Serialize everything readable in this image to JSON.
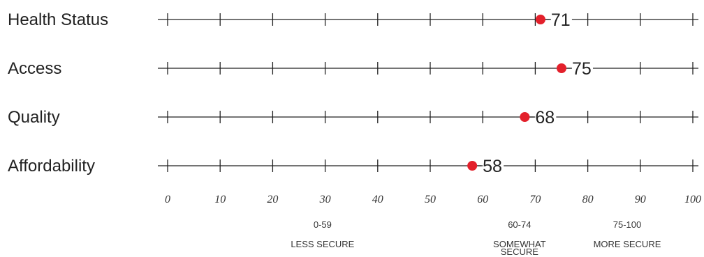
{
  "chart_data": {
    "type": "scatter",
    "title": "",
    "xlabel": "",
    "ylabel": "",
    "xlim": [
      0,
      100
    ],
    "x_ticks": [
      0,
      10,
      20,
      30,
      40,
      50,
      60,
      70,
      80,
      90,
      100
    ],
    "grid": false,
    "categories": [
      "Health Status",
      "Access",
      "Quality",
      "Affordability"
    ],
    "values": [
      71,
      75,
      68,
      58
    ],
    "value_labels": [
      "71",
      "75",
      "68",
      "58"
    ],
    "marker_color": "#e3202b",
    "line_color": "#222222",
    "bands": [
      {
        "range": "0-59",
        "label_lines": [
          "LESS SECURE"
        ]
      },
      {
        "range": "60-74",
        "label_lines": [
          "SOMEWHAT",
          "SECURE"
        ]
      },
      {
        "range": "75-100",
        "label_lines": [
          "MORE SECURE"
        ]
      }
    ]
  }
}
